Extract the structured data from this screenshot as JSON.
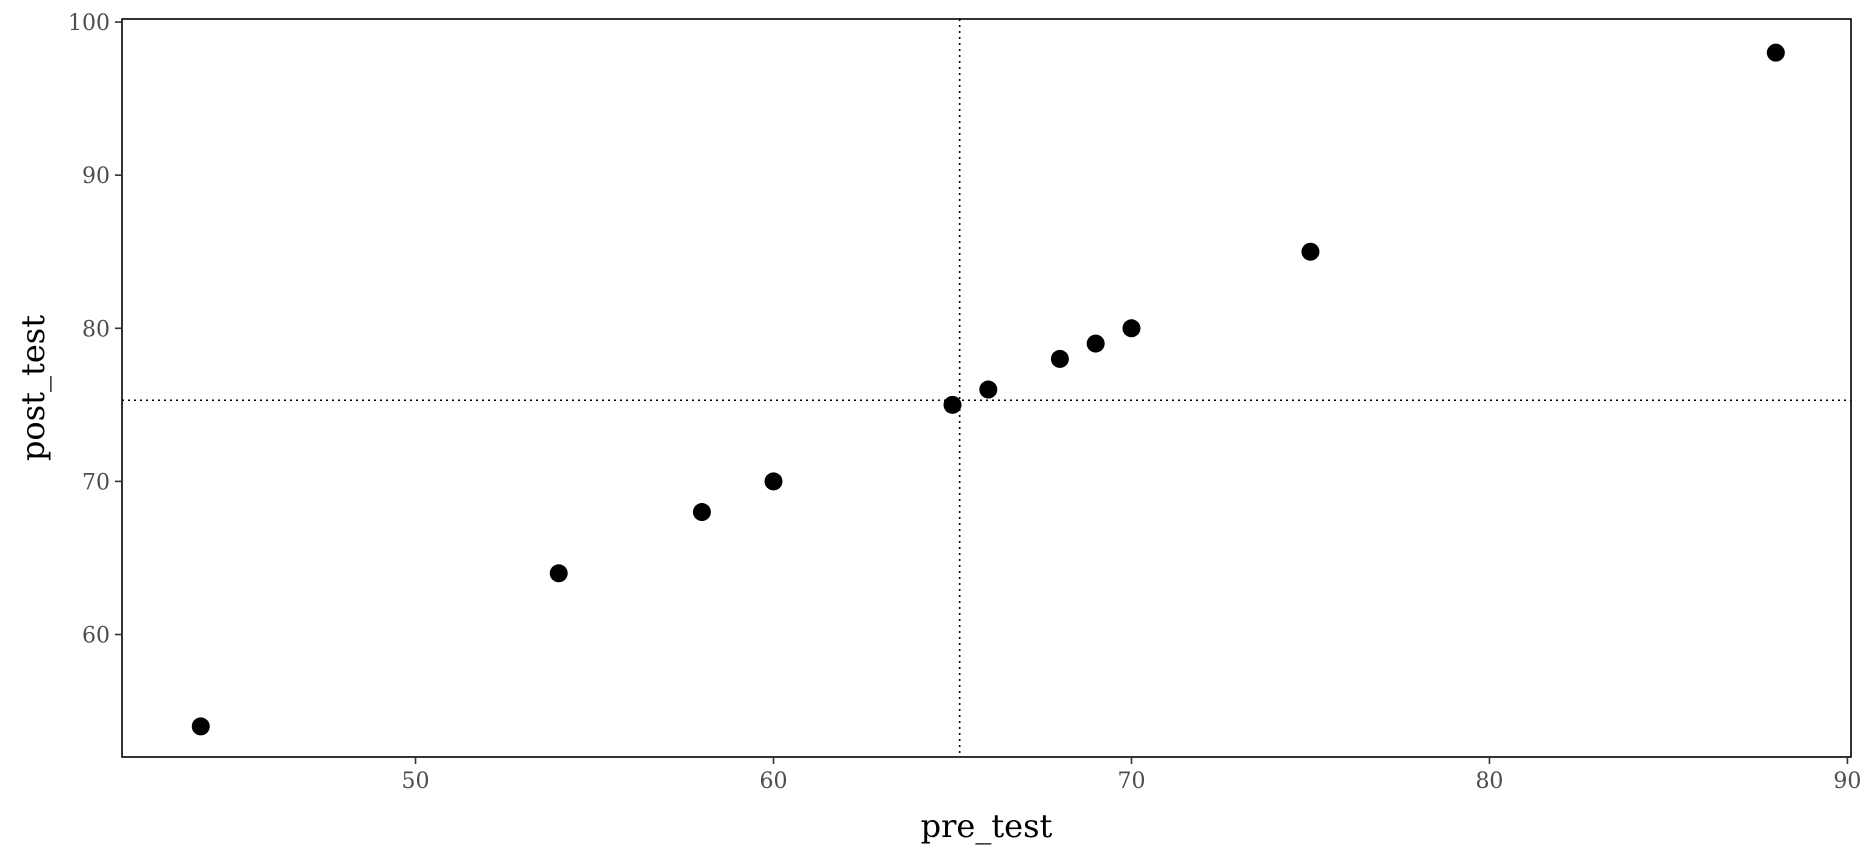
{
  "chart_data": {
    "type": "scatter",
    "title": "",
    "xlabel": "pre_test",
    "ylabel": "post_test",
    "xlim": [
      41.8,
      90.1
    ],
    "ylim": [
      52.0,
      100.2
    ],
    "x_ticks": [
      50,
      60,
      70,
      80,
      90
    ],
    "y_ticks": [
      60,
      70,
      80,
      90,
      100
    ],
    "grid": false,
    "legend": "none",
    "reference_lines": {
      "vertical_x": 65.2,
      "horizontal_y": 75.3
    },
    "colors": {
      "points": "#000000",
      "reference": "#000000",
      "frame": "#000000"
    },
    "series": [
      {
        "points": [
          {
            "x": 44,
            "y": 54
          },
          {
            "x": 54,
            "y": 64
          },
          {
            "x": 58,
            "y": 68
          },
          {
            "x": 60,
            "y": 70
          },
          {
            "x": 65,
            "y": 75
          },
          {
            "x": 66,
            "y": 76
          },
          {
            "x": 68,
            "y": 78
          },
          {
            "x": 69,
            "y": 79
          },
          {
            "x": 70,
            "y": 80
          },
          {
            "x": 75,
            "y": 85
          },
          {
            "x": 88,
            "y": 98
          }
        ]
      }
    ]
  }
}
